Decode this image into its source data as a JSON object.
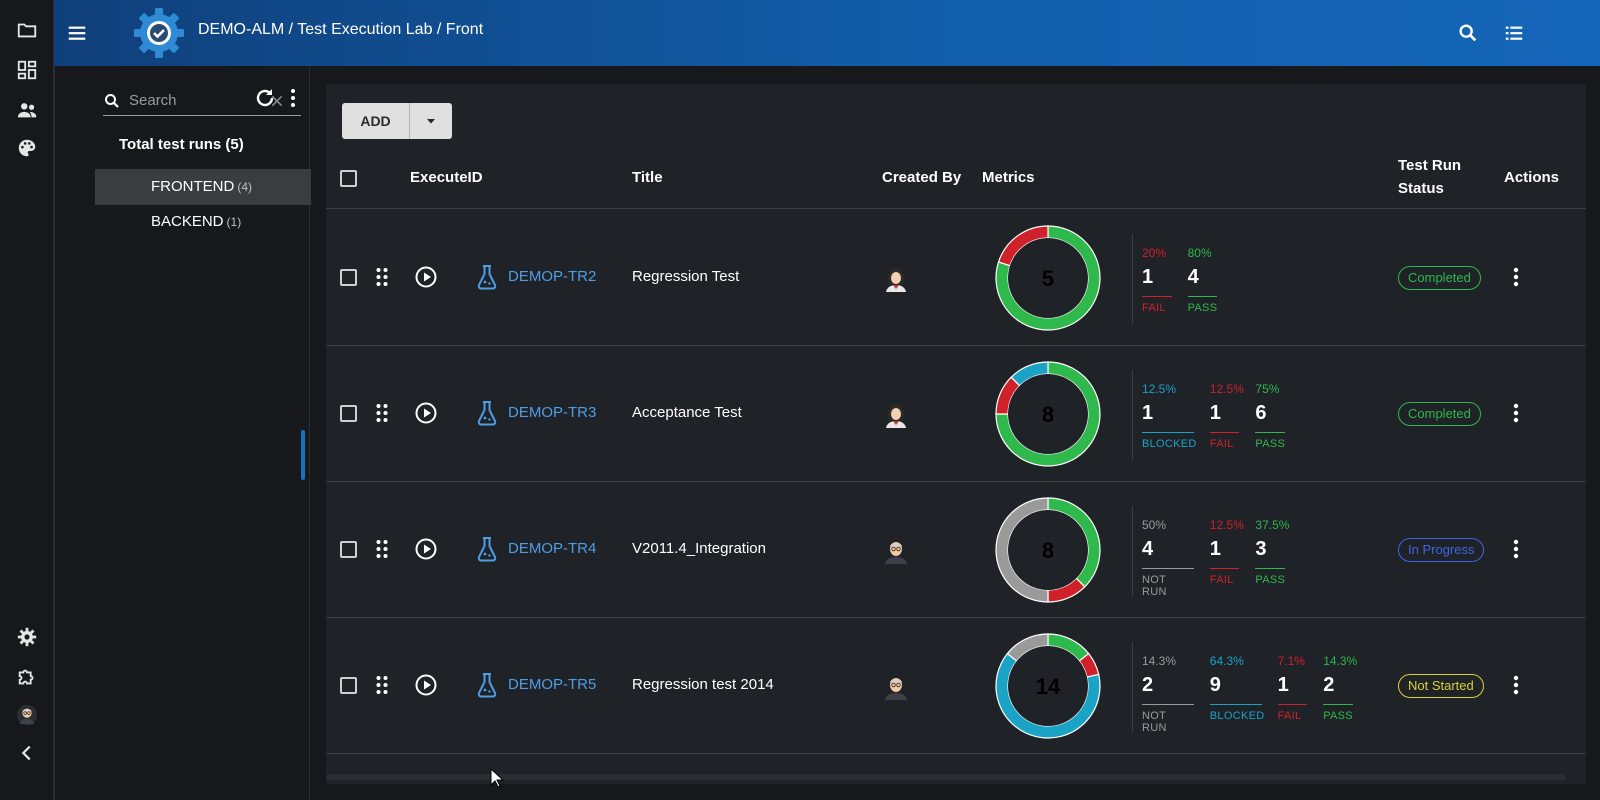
{
  "header": {
    "breadcrumb": "DEMO-ALM / Test Execution Lab / Front"
  },
  "sidebar": {
    "search_placeholder": "Search",
    "total_runs_label": "Total test runs (5)",
    "tree": [
      {
        "label": "FRONTEND",
        "count": "(4)",
        "active": true
      },
      {
        "label": "BACKEND",
        "count": "(1)",
        "active": false
      }
    ]
  },
  "toolbar": {
    "add_label": "ADD"
  },
  "table": {
    "headers": {
      "execute_id": "ExecuteID",
      "title": "Title",
      "created_by": "Created By",
      "metrics": "Metrics",
      "status_line1": "Test Run",
      "status_line2": "Status",
      "actions": "Actions"
    },
    "rows": [
      {
        "id": "DEMOP-TR2",
        "title": "Regression Test",
        "avatar": "female-avatar",
        "total": "5",
        "metrics": [
          {
            "pct": "20%",
            "count": "1",
            "label": "FAIL",
            "color": "#d0202a"
          },
          {
            "pct": "80%",
            "count": "4",
            "label": "PASS",
            "color": "#2fb84c"
          }
        ],
        "status": "Completed",
        "status_color": "#2fb84c"
      },
      {
        "id": "DEMOP-TR3",
        "title": "Acceptance Test",
        "avatar": "female-avatar",
        "total": "8",
        "metrics": [
          {
            "pct": "12.5%",
            "count": "1",
            "label": "BLOCKED",
            "color": "#1ba3c6"
          },
          {
            "pct": "12.5%",
            "count": "1",
            "label": "FAIL",
            "color": "#d0202a"
          },
          {
            "pct": "75%",
            "count": "6",
            "label": "PASS",
            "color": "#2fb84c"
          }
        ],
        "status": "Completed",
        "status_color": "#2fb84c"
      },
      {
        "id": "DEMOP-TR4",
        "title": "V2011.4_Integration",
        "avatar": "male-avatar",
        "total": "8",
        "metrics": [
          {
            "pct": "50%",
            "count": "4",
            "label": "NOT RUN",
            "color": "#9a9a9a"
          },
          {
            "pct": "12.5%",
            "count": "1",
            "label": "FAIL",
            "color": "#d0202a"
          },
          {
            "pct": "37.5%",
            "count": "3",
            "label": "PASS",
            "color": "#2fb84c"
          }
        ],
        "status": "In Progress",
        "status_color": "#3f63e8"
      },
      {
        "id": "DEMOP-TR5",
        "title": "Regression test 2014",
        "avatar": "male-avatar",
        "total": "14",
        "metrics": [
          {
            "pct": "14.3%",
            "count": "2",
            "label": "NOT RUN",
            "color": "#9a9a9a"
          },
          {
            "pct": "64.3%",
            "count": "9",
            "label": "BLOCKED",
            "color": "#1ba3c6"
          },
          {
            "pct": "7.1%",
            "count": "1",
            "label": "FAIL",
            "color": "#d0202a"
          },
          {
            "pct": "14.3%",
            "count": "2",
            "label": "PASS",
            "color": "#2fb84c"
          }
        ],
        "status": "Not Started",
        "status_color": "#d8d13a"
      }
    ]
  }
}
